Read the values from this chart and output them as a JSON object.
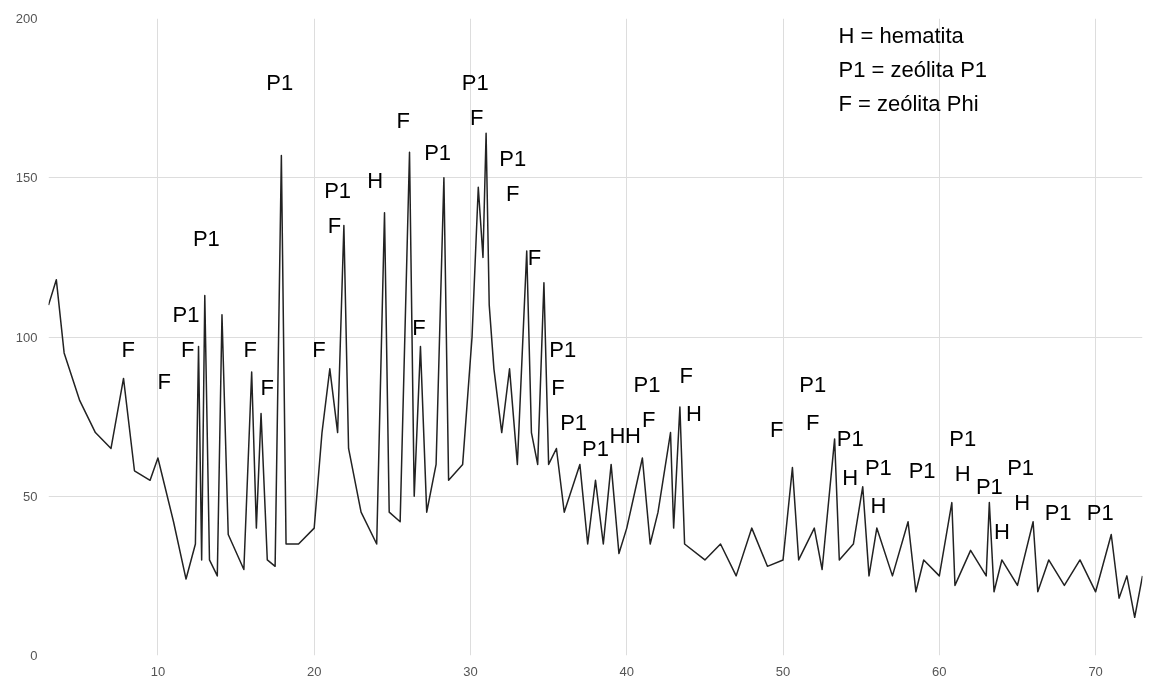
{
  "chart_data": {
    "type": "line",
    "x": [
      3.0,
      3.5,
      4.0,
      5.0,
      6.0,
      7.0,
      7.8,
      8.5,
      9.5,
      10.0,
      11.0,
      11.8,
      12.4,
      12.6,
      12.8,
      13.0,
      13.3,
      13.8,
      14.1,
      14.5,
      15.5,
      16.0,
      16.3,
      16.6,
      17.0,
      17.5,
      17.9,
      18.2,
      19.0,
      20.0,
      20.5,
      21.0,
      21.5,
      21.9,
      22.2,
      23.0,
      24.0,
      24.5,
      24.8,
      25.5,
      26.1,
      26.4,
      26.8,
      27.2,
      27.8,
      28.3,
      28.6,
      29.5,
      30.1,
      30.5,
      30.8,
      31.0,
      31.2,
      31.5,
      32.0,
      32.5,
      33.0,
      33.6,
      33.9,
      34.3,
      34.7,
      35.0,
      35.5,
      36.0,
      37.0,
      37.5,
      38.0,
      38.5,
      39.0,
      39.5,
      40.0,
      41.0,
      41.5,
      42.0,
      42.8,
      43.0,
      43.4,
      43.7,
      45.0,
      46.0,
      47.0,
      48.0,
      49.0,
      50.0,
      50.6,
      51.0,
      52.0,
      52.5,
      53.3,
      53.6,
      54.5,
      55.1,
      55.5,
      56.0,
      57.0,
      58.0,
      58.5,
      59.0,
      60.0,
      60.8,
      61.0,
      62.0,
      63.0,
      63.2,
      63.5,
      64.0,
      65.0,
      66.0,
      66.3,
      67.0,
      68.0,
      69.0,
      70.0,
      71.0,
      71.5,
      72.0,
      72.5,
      73.0
    ],
    "series": [
      {
        "color": "#222222",
        "values": [
          110,
          118,
          95,
          80,
          70,
          65,
          87,
          58,
          55,
          62,
          42,
          24,
          35,
          97,
          30,
          113,
          30,
          25,
          107,
          38,
          27,
          89,
          40,
          76,
          30,
          28,
          157,
          35,
          35,
          40,
          70,
          90,
          70,
          135,
          65,
          45,
          35,
          139,
          45,
          42,
          158,
          50,
          97,
          45,
          60,
          150,
          55,
          60,
          100,
          147,
          125,
          164,
          110,
          90,
          70,
          90,
          60,
          127,
          70,
          60,
          117,
          60,
          65,
          45,
          60,
          35,
          55,
          35,
          60,
          32,
          40,
          62,
          35,
          45,
          70,
          40,
          78,
          35,
          30,
          35,
          25,
          40,
          28,
          30,
          59,
          30,
          40,
          27,
          68,
          30,
          35,
          53,
          25,
          40,
          25,
          42,
          20,
          30,
          25,
          48,
          22,
          33,
          25,
          48,
          20,
          30,
          22,
          42,
          20,
          30,
          22,
          30,
          20,
          38,
          18,
          25,
          12,
          25
        ]
      }
    ],
    "xlim": [
      3,
      73
    ],
    "ylim": [
      0,
      200
    ],
    "xticks": [
      10,
      20,
      30,
      40,
      50,
      60,
      70
    ],
    "yticks": [
      0,
      50,
      100,
      150,
      200
    ],
    "grid": true,
    "marker": "none",
    "line_style": "solid",
    "annotations": [
      "H = hematita",
      "P1 = zeólita P1",
      "F = zeólita Phi",
      "P1",
      "P1",
      "F",
      "F",
      "P1",
      "P1",
      "F",
      "H",
      "P1",
      "F",
      "P1",
      "F",
      "P1",
      "F",
      "F",
      "F",
      "F",
      "F",
      "F",
      "F",
      "P1",
      "F",
      "P1",
      "F",
      "H",
      "F",
      "H",
      "H",
      "P1",
      "P1",
      "F",
      "P1",
      "F",
      "P1",
      "H",
      "P1",
      "H",
      "P1",
      "P1",
      "H",
      "P1",
      "H",
      "P1",
      "H",
      "P1",
      "P1"
    ]
  }
}
